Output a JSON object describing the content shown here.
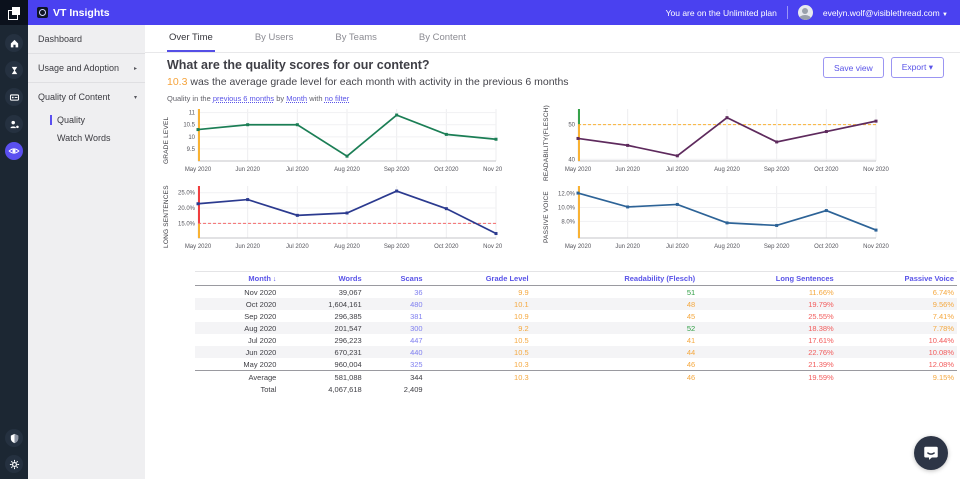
{
  "topbar": {
    "brand": "VT Insights",
    "plan_notice": "You are on the Unlimited plan",
    "user_email": "evelyn.wolf@visiblethread.com",
    "user_caret": "▼"
  },
  "rail": {
    "icons": [
      "home",
      "reports-hourglass",
      "content-card",
      "teams-people",
      "insights-eye"
    ],
    "bottom_icons": [
      "admin-shield",
      "settings-gear"
    ],
    "accent": "#5a4ff0"
  },
  "sidebar": {
    "items": [
      {
        "label": "Dashboard"
      },
      {
        "label": "Usage and Adoption",
        "caret": "▸"
      },
      {
        "label": "Quality of Content",
        "caret": "▾"
      },
      {
        "label": "Quality",
        "child": true,
        "active": true
      },
      {
        "label": "Watch Words",
        "child": true
      }
    ]
  },
  "tabs": {
    "items": [
      {
        "label": "Over Time",
        "active": true
      },
      {
        "label": "By Users",
        "active": false
      },
      {
        "label": "By Teams",
        "active": false
      },
      {
        "label": "By Content",
        "active": false
      }
    ]
  },
  "page": {
    "title": "What are the quality scores for our content?",
    "metric": "10.3",
    "subtitle": " was the average grade level for each month with activity in the previous 6 months",
    "filter": {
      "prefix": "Quality in the ",
      "range": "previous 6 months",
      "by": " by ",
      "group": "Month",
      "with_": " with ",
      "filter": "no filter"
    },
    "buttons": {
      "save": "Save view",
      "export": "Export",
      "export_caret": "▾"
    },
    "accent_color": "#4a41f0",
    "highlight_color": "#f5a33b"
  },
  "chart_data": [
    {
      "type": "line",
      "name": "grade-level",
      "ylabel": "GRADE LEVEL",
      "color": "#1b7e55",
      "x": [
        "May 2020",
        "Jun 2020",
        "Jul 2020",
        "Aug 2020",
        "Sep 2020",
        "Oct 2020",
        "Nov 2020"
      ],
      "values": [
        10.3,
        10.5,
        10.5,
        9.2,
        10.9,
        10.1,
        9.9
      ],
      "ylim": [
        9.0,
        11.15
      ],
      "yticks": [
        {
          "v": 9.5,
          "label": "9.5"
        },
        {
          "v": 10,
          "label": "10"
        },
        {
          "v": 10.5,
          "label": "10.5"
        },
        {
          "v": 11,
          "label": "11"
        }
      ],
      "marker_segments": [
        {
          "from": 11.15,
          "to": 9.0,
          "color": "#f9b233"
        }
      ]
    },
    {
      "type": "line",
      "name": "readability-flesch",
      "ylabel": "READABILITY(FLESCH)",
      "color": "#5e2a5d",
      "x": [
        "May 2020",
        "Jun 2020",
        "Jul 2020",
        "Aug 2020",
        "Sep 2020",
        "Oct 2020",
        "Nov 2020"
      ],
      "values": [
        46,
        44,
        41,
        52,
        45,
        48,
        51
      ],
      "ylim": [
        39.5,
        54.5
      ],
      "yticks": [
        {
          "v": 40,
          "label": "40"
        },
        {
          "v": 50,
          "label": "50"
        }
      ],
      "threshold": {
        "v": 50,
        "color": "#f9b233"
      },
      "marker_segments": [
        {
          "from": 54.5,
          "to": 50,
          "color": "#37a24a"
        },
        {
          "from": 50,
          "to": 39.5,
          "color": "#f9b233"
        }
      ]
    },
    {
      "type": "line",
      "name": "long-sentences",
      "ylabel": "LONG SENTENCES",
      "color": "#2b3a8f",
      "x": [
        "May 2020",
        "Jun 2020",
        "Jul 2020",
        "Aug 2020",
        "Sep 2020",
        "Oct 2020",
        "Nov 2020"
      ],
      "values": [
        21.39,
        22.76,
        17.61,
        18.38,
        25.55,
        19.79,
        11.66
      ],
      "ylim": [
        10.2,
        27.2
      ],
      "yticks": [
        {
          "v": 15,
          "label": "15.0%"
        },
        {
          "v": 20,
          "label": "20.0%"
        },
        {
          "v": 25,
          "label": "25.0%"
        }
      ],
      "threshold": {
        "v": 15,
        "color": "#f56b6b"
      },
      "marker_segments": [
        {
          "from": 27.2,
          "to": 15,
          "color": "#f03e3e"
        },
        {
          "from": 15,
          "to": 10.2,
          "color": "#f9b233"
        }
      ]
    },
    {
      "type": "line",
      "name": "passive-voice",
      "ylabel": "PASSIVE VOICE",
      "color": "#2d6397",
      "x": [
        "May 2020",
        "Jun 2020",
        "Jul 2020",
        "Aug 2020",
        "Sep 2020",
        "Oct 2020",
        "Nov 2020"
      ],
      "values": [
        12.08,
        10.08,
        10.44,
        7.78,
        7.41,
        9.56,
        6.74
      ],
      "ylim": [
        5.6,
        13.1
      ],
      "yticks": [
        {
          "v": 8,
          "label": "8.0%"
        },
        {
          "v": 10,
          "label": "10.0%"
        },
        {
          "v": 12,
          "label": "12.0%"
        }
      ],
      "marker_segments": [
        {
          "from": 13.1,
          "to": 5.6,
          "color": "#f9b233"
        }
      ]
    }
  ],
  "table": {
    "columns": [
      {
        "label": "Month",
        "sort": "↓"
      },
      {
        "label": "Words"
      },
      {
        "label": "Scans"
      },
      {
        "label": "Grade Level"
      },
      {
        "label": "Readability (Flesch)"
      },
      {
        "label": "Long Sentences"
      },
      {
        "label": "Passive Voice"
      }
    ],
    "rows": [
      [
        {
          "t": "Nov 2020"
        },
        {
          "t": "39,067"
        },
        {
          "t": "36",
          "tone": "link"
        },
        {
          "t": "9.9",
          "tone": "orange"
        },
        {
          "t": "51",
          "tone": "green"
        },
        {
          "t": "11.66%",
          "tone": "orange"
        },
        {
          "t": "6.74%",
          "tone": "orange"
        }
      ],
      [
        {
          "t": "Oct 2020"
        },
        {
          "t": "1,604,161"
        },
        {
          "t": "480",
          "tone": "link"
        },
        {
          "t": "10.1",
          "tone": "orange"
        },
        {
          "t": "48",
          "tone": "orange"
        },
        {
          "t": "19.79%",
          "tone": "red"
        },
        {
          "t": "9.56%",
          "tone": "orange"
        }
      ],
      [
        {
          "t": "Sep 2020"
        },
        {
          "t": "296,385"
        },
        {
          "t": "381",
          "tone": "link"
        },
        {
          "t": "10.9",
          "tone": "orange"
        },
        {
          "t": "45",
          "tone": "orange"
        },
        {
          "t": "25.55%",
          "tone": "red"
        },
        {
          "t": "7.41%",
          "tone": "orange"
        }
      ],
      [
        {
          "t": "Aug 2020"
        },
        {
          "t": "201,547"
        },
        {
          "t": "300",
          "tone": "link"
        },
        {
          "t": "9.2",
          "tone": "orange"
        },
        {
          "t": "52",
          "tone": "green"
        },
        {
          "t": "18.38%",
          "tone": "red"
        },
        {
          "t": "7.78%",
          "tone": "orange"
        }
      ],
      [
        {
          "t": "Jul 2020"
        },
        {
          "t": "296,223"
        },
        {
          "t": "447",
          "tone": "link"
        },
        {
          "t": "10.5",
          "tone": "orange"
        },
        {
          "t": "41",
          "tone": "orange"
        },
        {
          "t": "17.61%",
          "tone": "red"
        },
        {
          "t": "10.44%",
          "tone": "red"
        }
      ],
      [
        {
          "t": "Jun 2020"
        },
        {
          "t": "670,231"
        },
        {
          "t": "440",
          "tone": "link"
        },
        {
          "t": "10.5",
          "tone": "orange"
        },
        {
          "t": "44",
          "tone": "orange"
        },
        {
          "t": "22.76%",
          "tone": "red"
        },
        {
          "t": "10.08%",
          "tone": "red"
        }
      ],
      [
        {
          "t": "May 2020"
        },
        {
          "t": "960,004"
        },
        {
          "t": "325",
          "tone": "link"
        },
        {
          "t": "10.3",
          "tone": "orange"
        },
        {
          "t": "46",
          "tone": "orange"
        },
        {
          "t": "21.39%",
          "tone": "red"
        },
        {
          "t": "12.08%",
          "tone": "red"
        }
      ]
    ],
    "summary_rows": [
      [
        {
          "t": "Average"
        },
        {
          "t": "581,088"
        },
        {
          "t": "344"
        },
        {
          "t": "10.3",
          "tone": "orange"
        },
        {
          "t": "46",
          "tone": "orange"
        },
        {
          "t": "19.59%",
          "tone": "red"
        },
        {
          "t": "9.15%",
          "tone": "orange"
        }
      ],
      [
        {
          "t": "Total"
        },
        {
          "t": "4,067,618"
        },
        {
          "t": "2,409"
        },
        {
          "t": ""
        },
        {
          "t": ""
        },
        {
          "t": ""
        },
        {
          "t": ""
        }
      ]
    ]
  }
}
